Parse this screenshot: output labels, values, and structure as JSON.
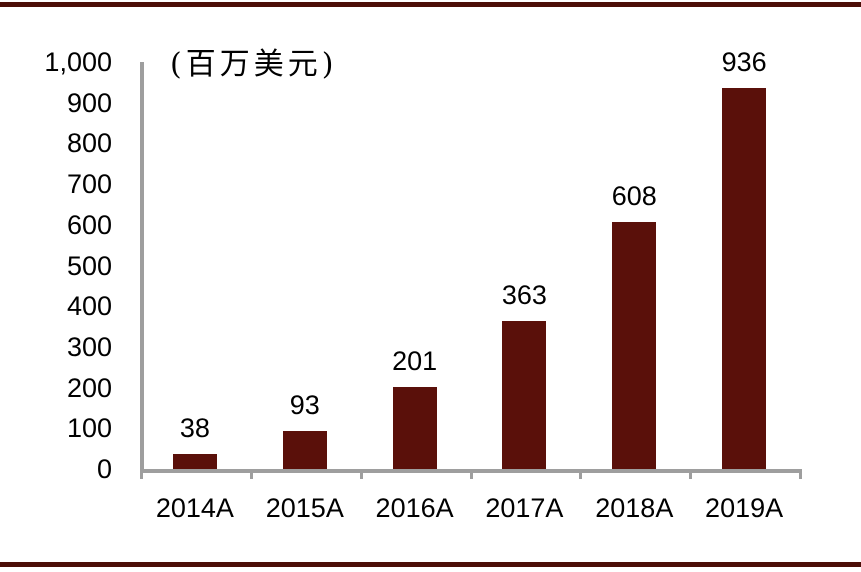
{
  "chart_data": {
    "type": "bar",
    "title": "",
    "unit_label": "(百万美元)",
    "categories": [
      "2014A",
      "2015A",
      "2016A",
      "2017A",
      "2018A",
      "2019A"
    ],
    "values": [
      38,
      93,
      201,
      363,
      608,
      936
    ],
    "data_labels": [
      "38",
      "93",
      "201",
      "363",
      "608",
      "936"
    ],
    "ylim": [
      0,
      1000
    ],
    "ytick_interval": 100,
    "ytick_labels": [
      "0",
      "100",
      "200",
      "300",
      "400",
      "500",
      "600",
      "700",
      "800",
      "900",
      "1,000"
    ],
    "grid": "off",
    "legend": "none",
    "colors": {
      "bar": "#5A100A",
      "rule": "#4C0E07",
      "axis": "#9E9E9E",
      "text": "#000000"
    }
  }
}
